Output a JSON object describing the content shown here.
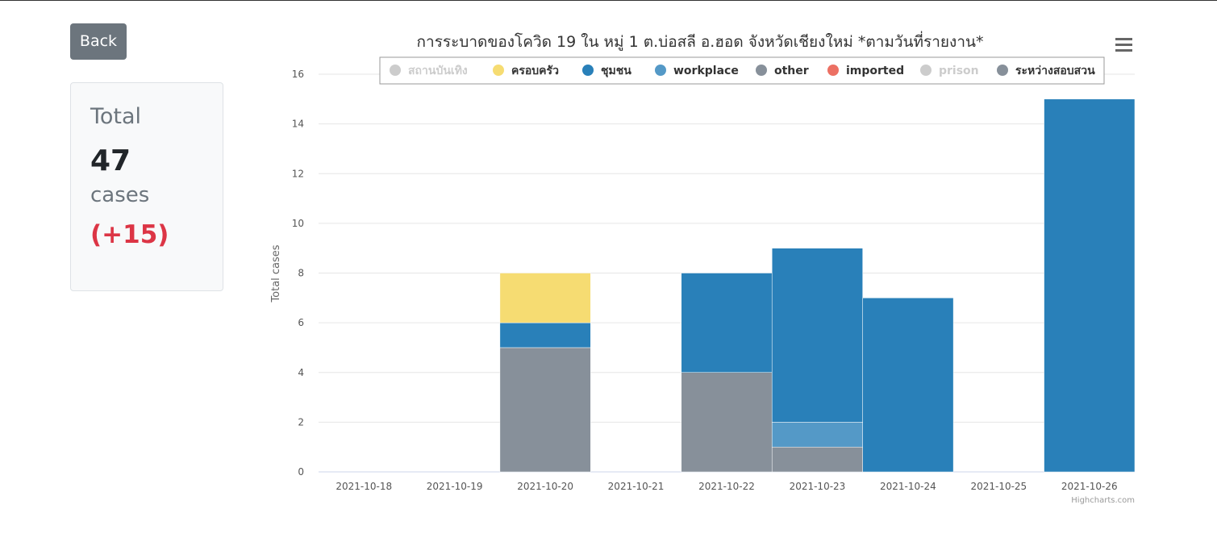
{
  "back_label": "Back",
  "stats": {
    "label": "Total",
    "value": "47",
    "unit": "cases",
    "delta": "(+15)"
  },
  "credit": "Highcharts.com",
  "chart_data": {
    "type": "bar",
    "stacked": true,
    "title": "การระบาดของโควิด 19 ใน หมู่ 1 ต.บ่อสลี อ.ฮอด จังหวัดเชียงใหม่ *ตามวันที่รายงาน*",
    "xlabel": "",
    "ylabel": "Total cases",
    "ylim": [
      0,
      16
    ],
    "yticks": [
      0,
      2,
      4,
      6,
      8,
      10,
      12,
      14,
      16
    ],
    "grid": true,
    "legend_placement": "top",
    "categories": [
      "2021-10-18",
      "2021-10-19",
      "2021-10-20",
      "2021-10-21",
      "2021-10-22",
      "2021-10-23",
      "2021-10-24",
      "2021-10-25",
      "2021-10-26"
    ],
    "series": [
      {
        "name": "สถานบันเทิง",
        "color": "#cccccc",
        "visible": false,
        "values": [
          0,
          0,
          0,
          0,
          0,
          0,
          0,
          0,
          0
        ]
      },
      {
        "name": "ครอบครัว",
        "color": "#f6dc72",
        "visible": true,
        "values": [
          0,
          0,
          2,
          0,
          0,
          0,
          0,
          0,
          0
        ]
      },
      {
        "name": "ชุมชน",
        "color": "#2980b9",
        "visible": true,
        "values": [
          0,
          0,
          1,
          0,
          4,
          7,
          7,
          0,
          15
        ]
      },
      {
        "name": "workplace",
        "color": "#5499c7",
        "visible": true,
        "values": [
          0,
          0,
          0,
          0,
          0,
          1,
          0,
          0,
          0
        ]
      },
      {
        "name": "other",
        "color": "#87909a",
        "visible": true,
        "values": [
          0,
          0,
          0,
          0,
          0,
          0,
          0,
          0,
          0
        ]
      },
      {
        "name": "imported",
        "color": "#ec7063",
        "visible": true,
        "values": [
          0,
          0,
          0,
          0,
          0,
          0,
          0,
          0,
          0
        ]
      },
      {
        "name": "prison",
        "color": "#cccccc",
        "visible": false,
        "values": [
          0,
          0,
          0,
          0,
          0,
          0,
          0,
          0,
          0
        ]
      },
      {
        "name": "ระหว่างสอบสวน",
        "color": "#87909a",
        "visible": true,
        "values": [
          0,
          0,
          5,
          0,
          4,
          1,
          0,
          0,
          0
        ]
      }
    ]
  }
}
